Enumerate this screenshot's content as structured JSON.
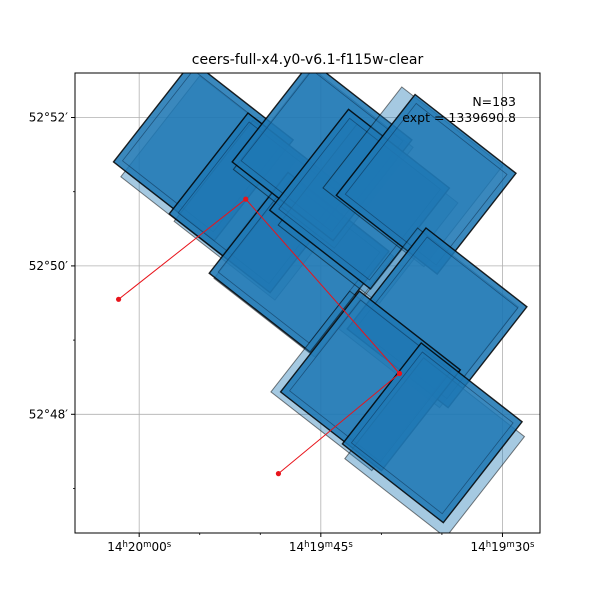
{
  "chart_data": {
    "type": "footprint map",
    "title": "ceers-full-x4.y0-v6.1-f115w-clear",
    "annotation": {
      "count_label": "N=183",
      "exptime_label": "expt = 1339690.8"
    },
    "axes": {
      "x_ticks": [
        {
          "ra_sec": 60,
          "label_h": "14",
          "label_m": "20",
          "label_s": "00"
        },
        {
          "ra_sec": 45,
          "label_h": "14",
          "label_m": "19",
          "label_s": "45"
        },
        {
          "ra_sec": 30,
          "label_h": "14",
          "label_m": "19",
          "label_s": "30"
        }
      ],
      "x_minor_ra_sec": [
        55,
        50,
        40,
        35
      ],
      "y_ticks": [
        {
          "dec_arcmin": 52,
          "label": "52°52′"
        },
        {
          "dec_arcmin": 50,
          "label": "52°50′"
        },
        {
          "dec_arcmin": 48,
          "label": "52°48′"
        }
      ],
      "y_minor_dec_arcmin": [
        51,
        49,
        47
      ],
      "xlim_ra_sec": [
        65.3,
        26.9
      ],
      "ylim_dec_arcmin": [
        46.4,
        52.6
      ],
      "grid": true
    },
    "footprints": {
      "fill_color": "#1f77b4",
      "edge_color": "#000000",
      "light_fill_opacity": 0.4,
      "dark_fill_opacity": 0.88,
      "tiles": [
        {
          "ra": 54.1,
          "dec": 51.35,
          "kind": "light"
        },
        {
          "ra": 54.7,
          "dec": 51.55,
          "kind": "dark"
        },
        {
          "ra": 49.7,
          "dec": 50.75,
          "kind": "light"
        },
        {
          "ra": 50.1,
          "dec": 50.85,
          "kind": "dark"
        },
        {
          "ra": 46.4,
          "dec": 49.98,
          "kind": "light"
        },
        {
          "ra": 46.8,
          "dec": 50.05,
          "kind": "dark"
        },
        {
          "ra": 44.8,
          "dec": 51.45,
          "kind": "light"
        },
        {
          "ra": 44.9,
          "dec": 51.55,
          "kind": "dark"
        },
        {
          "ra": 41.1,
          "dec": 50.7,
          "kind": "light"
        },
        {
          "ra": 41.8,
          "dec": 50.9,
          "kind": "dark"
        },
        {
          "ra": 37.4,
          "dec": 51.2,
          "kind": "light"
        },
        {
          "ra": 36.3,
          "dec": 51.1,
          "kind": "dark"
        },
        {
          "ra": 36.1,
          "dec": 49.3,
          "kind": "light"
        },
        {
          "ra": 35.4,
          "dec": 49.3,
          "kind": "dark"
        },
        {
          "ra": 41.7,
          "dec": 48.45,
          "kind": "light"
        },
        {
          "ra": 40.9,
          "dec": 48.45,
          "kind": "dark"
        },
        {
          "ra": 35.6,
          "dec": 47.55,
          "kind": "light"
        },
        {
          "ra": 35.8,
          "dec": 47.75,
          "kind": "dark"
        }
      ]
    },
    "track": {
      "color": "#e8141b",
      "points": [
        {
          "ra": 61.7,
          "dec": 49.55
        },
        {
          "ra": 51.2,
          "dec": 50.9
        },
        {
          "ra": 38.5,
          "dec": 48.55
        },
        {
          "ra": 48.5,
          "dec": 47.2
        }
      ]
    }
  }
}
